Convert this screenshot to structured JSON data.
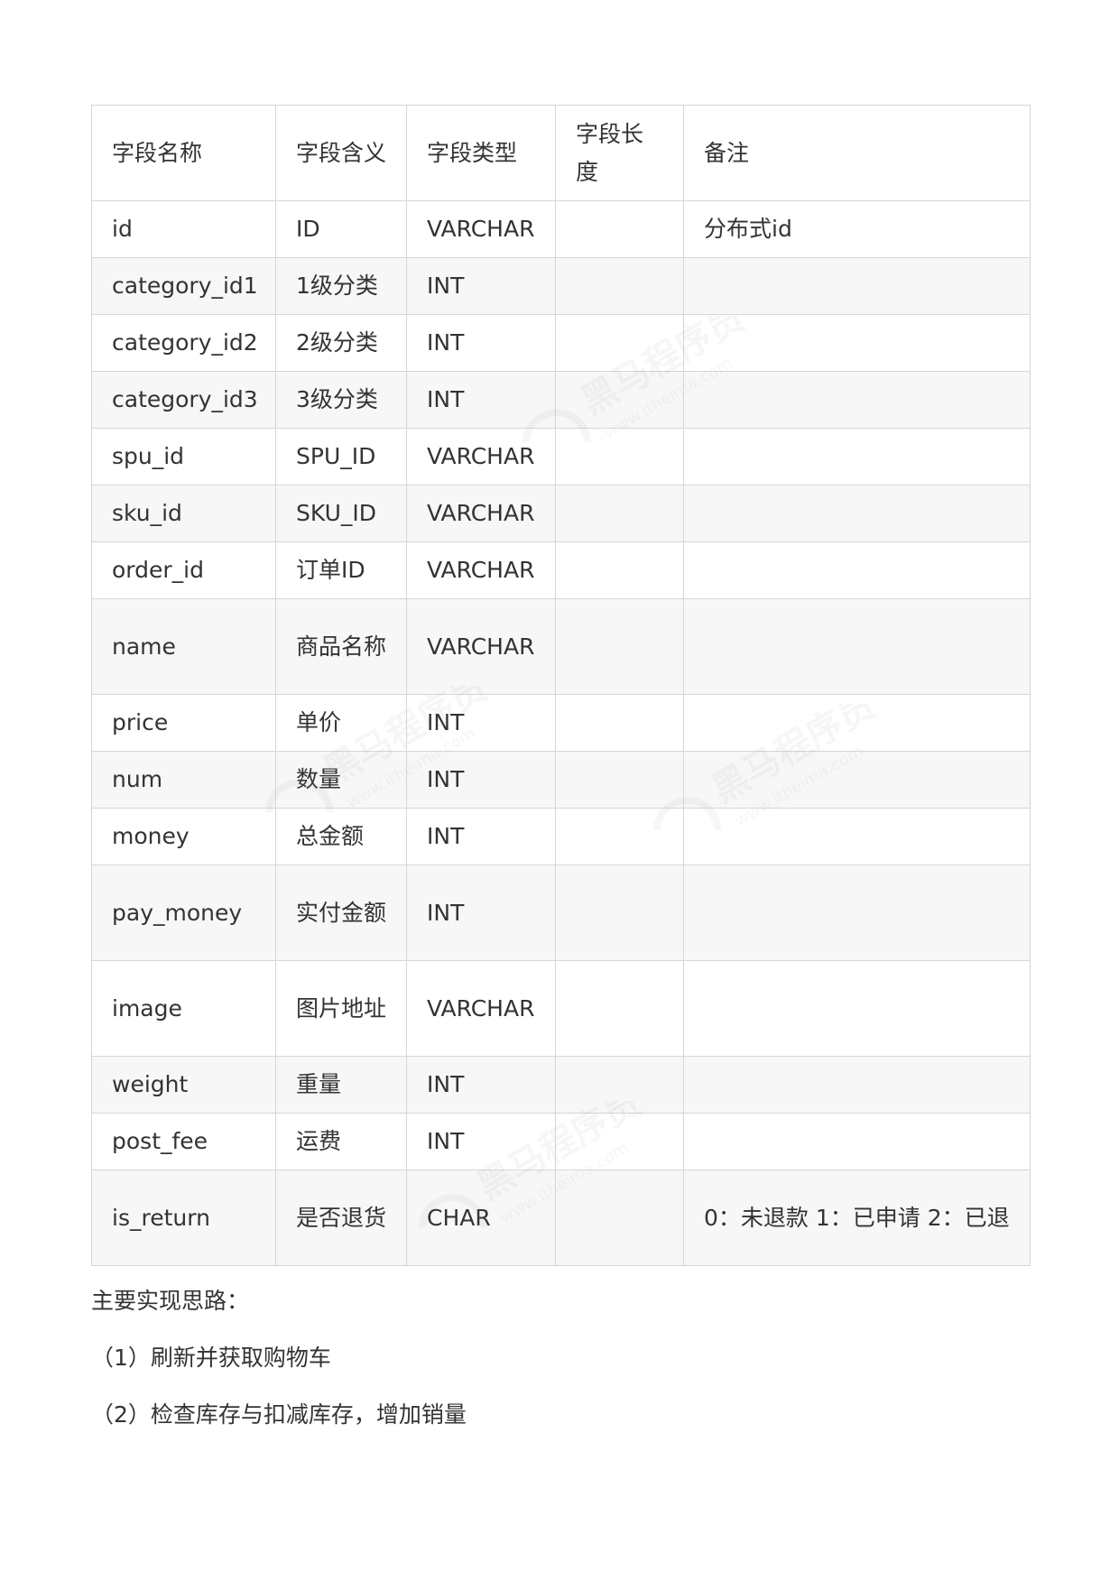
{
  "table": {
    "headers": [
      "字段名称",
      "字段含义",
      "字段类型",
      "字段长度",
      "备注"
    ],
    "rows": [
      {
        "name": "id",
        "meaning": "ID",
        "type": "VARCHAR",
        "length": "",
        "remark": "分布式id"
      },
      {
        "name": "category_id1",
        "meaning": "1级分类",
        "type": "INT",
        "length": "",
        "remark": ""
      },
      {
        "name": "category_id2",
        "meaning": "2级分类",
        "type": "INT",
        "length": "",
        "remark": ""
      },
      {
        "name": "category_id3",
        "meaning": "3级分类",
        "type": "INT",
        "length": "",
        "remark": ""
      },
      {
        "name": "spu_id",
        "meaning": "SPU_ID",
        "type": "VARCHAR",
        "length": "",
        "remark": ""
      },
      {
        "name": "sku_id",
        "meaning": "SKU_ID",
        "type": "VARCHAR",
        "length": "",
        "remark": ""
      },
      {
        "name": "order_id",
        "meaning": "订单ID",
        "type": "VARCHAR",
        "length": "",
        "remark": ""
      },
      {
        "name": "name",
        "meaning": "商品名称",
        "type": "VARCHAR",
        "length": "",
        "remark": ""
      },
      {
        "name": "price",
        "meaning": "单价",
        "type": "INT",
        "length": "",
        "remark": ""
      },
      {
        "name": "num",
        "meaning": "数量",
        "type": "INT",
        "length": "",
        "remark": ""
      },
      {
        "name": "money",
        "meaning": "总金额",
        "type": "INT",
        "length": "",
        "remark": ""
      },
      {
        "name": "pay_money",
        "meaning": "实付金额",
        "type": "INT",
        "length": "",
        "remark": ""
      },
      {
        "name": "image",
        "meaning": "图片地址",
        "type": "VARCHAR",
        "length": "",
        "remark": ""
      },
      {
        "name": "weight",
        "meaning": "重量",
        "type": "INT",
        "length": "",
        "remark": ""
      },
      {
        "name": "post_fee",
        "meaning": "运费",
        "type": "INT",
        "length": "",
        "remark": ""
      },
      {
        "name": "is_return",
        "meaning": "是否退货",
        "type": "CHAR",
        "length": "",
        "remark": "0：未退款 1：已申请 2：已退"
      }
    ]
  },
  "notes": {
    "heading": "主要实现思路：",
    "step1": "（1）刷新并获取购物车",
    "step2": "（2）检查库存与扣减库存，增加销量"
  },
  "watermark": {
    "brand": "黑马程序员",
    "url": "www.itheima.com",
    "color": "#888888"
  }
}
